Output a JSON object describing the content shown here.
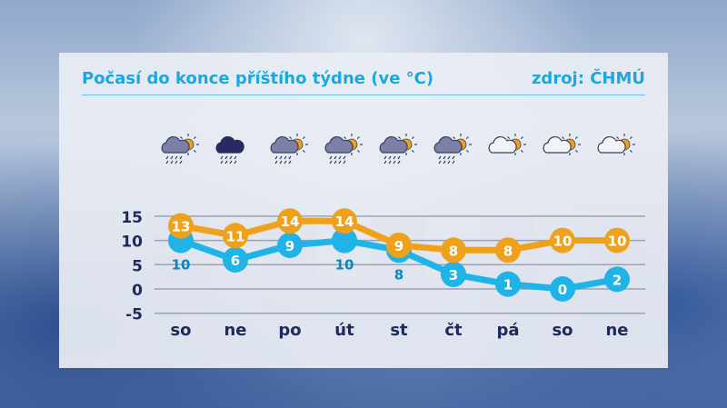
{
  "header": {
    "title": "Počasí do konce příštího týdne (ve °C)",
    "source": "zdroj: ČHMÚ"
  },
  "colors": {
    "accent": "#19a8e0",
    "max_series": "#f0a11c",
    "min_series": "#1fb3e8",
    "axis_text": "#1e2a5a"
  },
  "icons": [
    "cloud-sun-rain-icon",
    "dark-cloud-rain-icon",
    "cloud-sun-rain-icon",
    "cloud-sun-rain-icon",
    "cloud-sun-rain-icon",
    "cloud-sun-rain-icon",
    "cloud-sun-icon",
    "cloud-sun-icon",
    "cloud-sun-icon"
  ],
  "chart_data": {
    "type": "line",
    "categories": [
      "so",
      "ne",
      "po",
      "út",
      "st",
      "čt",
      "pá",
      "so",
      "ne"
    ],
    "yticks": [
      "15",
      "10",
      "5",
      "0",
      "-5"
    ],
    "ylim": [
      -5,
      15
    ],
    "grid": true,
    "series": [
      {
        "key": "max",
        "color": "#f0a11c",
        "values": [
          13,
          11,
          14,
          14,
          9,
          8,
          8,
          10,
          10
        ]
      },
      {
        "key": "min",
        "color": "#1fb3e8",
        "values": [
          10,
          6,
          9,
          10,
          8,
          3,
          1,
          0,
          2
        ]
      }
    ]
  }
}
